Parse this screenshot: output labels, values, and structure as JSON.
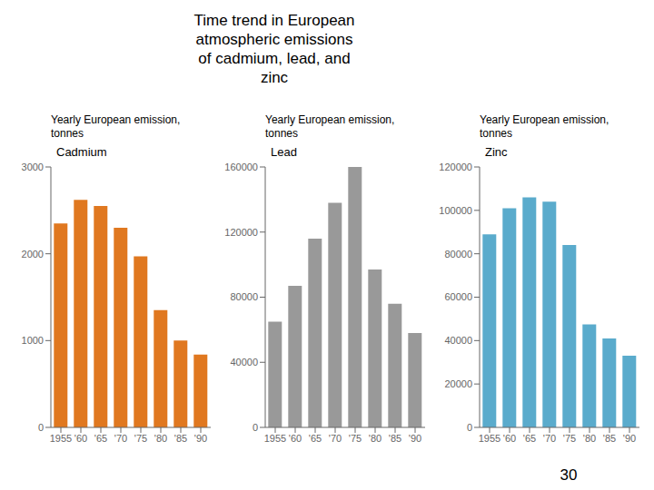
{
  "title": "Time trend in European\natmospheric emissions\nof cadmium, lead, and\nzinc",
  "annotations": [
    "30"
  ],
  "chart_data": [
    {
      "type": "bar",
      "title": "Cadmium",
      "ylabel": "Yearly European emission,\ntonnes",
      "color": "#E07820",
      "categories": [
        "1955",
        "'60",
        "'65",
        "'70",
        "'75",
        "'80",
        "'85",
        "'90"
      ],
      "values": [
        2350,
        2620,
        2550,
        2300,
        1970,
        1350,
        1000,
        840
      ],
      "ylim": [
        0,
        3000
      ],
      "yticks": [
        0,
        1000,
        2000,
        3000
      ],
      "grid": false
    },
    {
      "type": "bar",
      "title": "Lead",
      "ylabel": "Yearly European emission,\ntonnes",
      "color": "#999999",
      "categories": [
        "1955",
        "'60",
        "'65",
        "'70",
        "'75",
        "'80",
        "'85",
        "'90"
      ],
      "values": [
        65000,
        87000,
        116000,
        138000,
        160000,
        97000,
        76000,
        58000
      ],
      "ylim": [
        0,
        160000
      ],
      "yticks": [
        0,
        40000,
        80000,
        120000,
        160000
      ],
      "grid": false
    },
    {
      "type": "bar",
      "title": "Zinc",
      "ylabel": "Yearly European emission,\ntonnes",
      "color": "#5AABCC",
      "categories": [
        "1955",
        "'60",
        "'65",
        "'70",
        "'75",
        "'80",
        "'85",
        "'90"
      ],
      "values": [
        89000,
        101000,
        106000,
        104000,
        84000,
        47500,
        41000,
        33000
      ],
      "ylim": [
        0,
        120000
      ],
      "yticks": [
        0,
        20000,
        40000,
        60000,
        80000,
        100000,
        120000
      ],
      "grid": false
    }
  ]
}
